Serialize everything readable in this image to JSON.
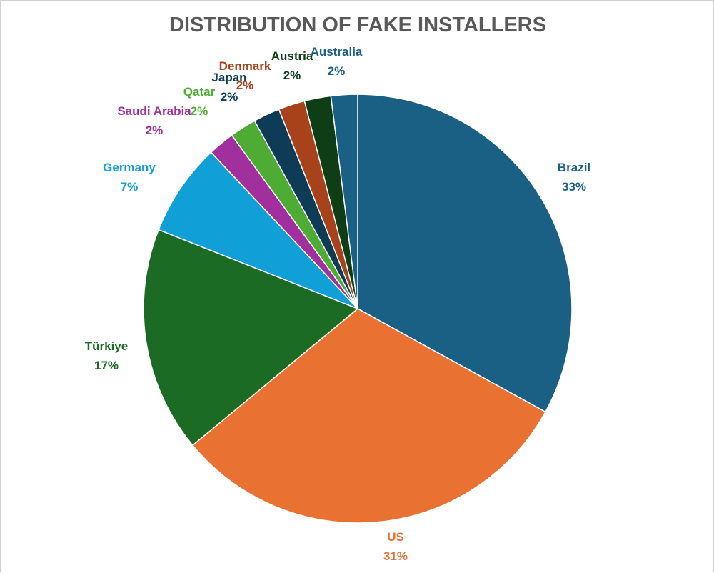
{
  "chart_data": {
    "type": "pie",
    "title": "DISTRIBUTION OF FAKE INSTALLERS",
    "start_angle_deg": 0,
    "direction": "clockwise",
    "slices": [
      {
        "label": "Brazil",
        "percent_label": "33%",
        "value": 33,
        "color": "#1a6084"
      },
      {
        "label": "US",
        "percent_label": "31%",
        "value": 31,
        "color": "#e97132"
      },
      {
        "label": "Türkiye",
        "percent_label": "17%",
        "value": 17,
        "color": "#1c6b24"
      },
      {
        "label": "Germany",
        "percent_label": "7%",
        "value": 7,
        "color": "#119fd8"
      },
      {
        "label": "Saudi Arabia",
        "percent_label": "2%",
        "value": 2,
        "color": "#a1309e"
      },
      {
        "label": "Qatar",
        "percent_label": "2%",
        "value": 2,
        "color": "#4eac34"
      },
      {
        "label": "Japan",
        "percent_label": "2%",
        "value": 2,
        "color": "#0e3c57"
      },
      {
        "label": "Denmark",
        "percent_label": "2%",
        "value": 2,
        "color": "#a8421a"
      },
      {
        "label": "Austria",
        "percent_label": "2%",
        "value": 2,
        "color": "#0f3e16"
      },
      {
        "label": "Australia",
        "percent_label": "2%",
        "value": 2,
        "color": "#1a6084"
      }
    ]
  }
}
